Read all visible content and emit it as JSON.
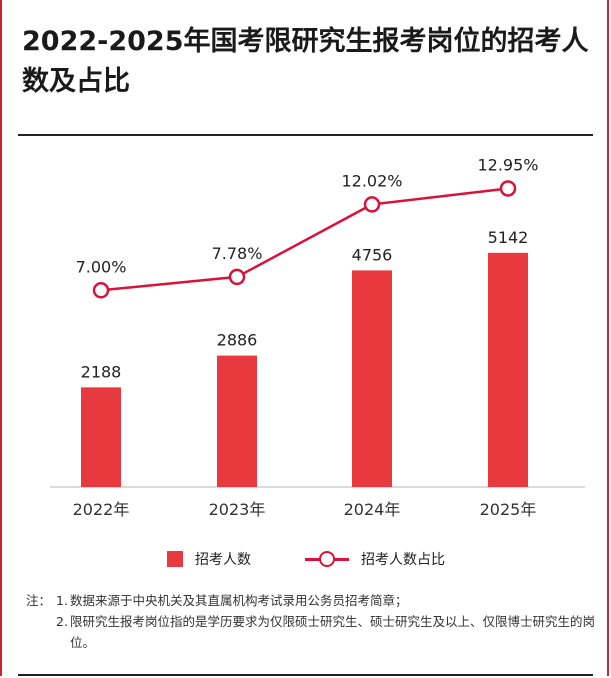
{
  "title": "2022-2025年国考限研究生报考岗位的招考人数及占比",
  "legend": {
    "bar_label": "招考人数",
    "line_label": "招考人数占比"
  },
  "notes": {
    "prefix": "注：",
    "items": [
      {
        "num": "1.",
        "text": "数据来源于中央机关及其直属机构考试录用公务员招考简章；"
      },
      {
        "num": "2.",
        "text": "限研究生报考岗位指的是学历要求为仅限硕士研究生、硕士研究生及以上、仅限博士研究生的岗位。"
      }
    ]
  },
  "colors": {
    "bar": "#e8393f",
    "line": "#d8133a",
    "accent": "#cc2430"
  },
  "chart_data": {
    "type": "bar",
    "categories": [
      "2022年",
      "2023年",
      "2024年",
      "2025年"
    ],
    "series": [
      {
        "name": "招考人数",
        "type": "bar",
        "values": [
          2188,
          2886,
          4756,
          5142
        ],
        "labels": [
          "2188",
          "2886",
          "4756",
          "5142"
        ]
      },
      {
        "name": "招考人数占比",
        "type": "line",
        "values": [
          7.0,
          7.78,
          12.02,
          12.95
        ],
        "labels": [
          "7.00%",
          "7.78%",
          "12.02%",
          "12.95%"
        ]
      }
    ],
    "bar_ylim": [
      0,
      7400
    ],
    "line_ylim": [
      -4.5,
      15.2
    ],
    "grid": false
  }
}
